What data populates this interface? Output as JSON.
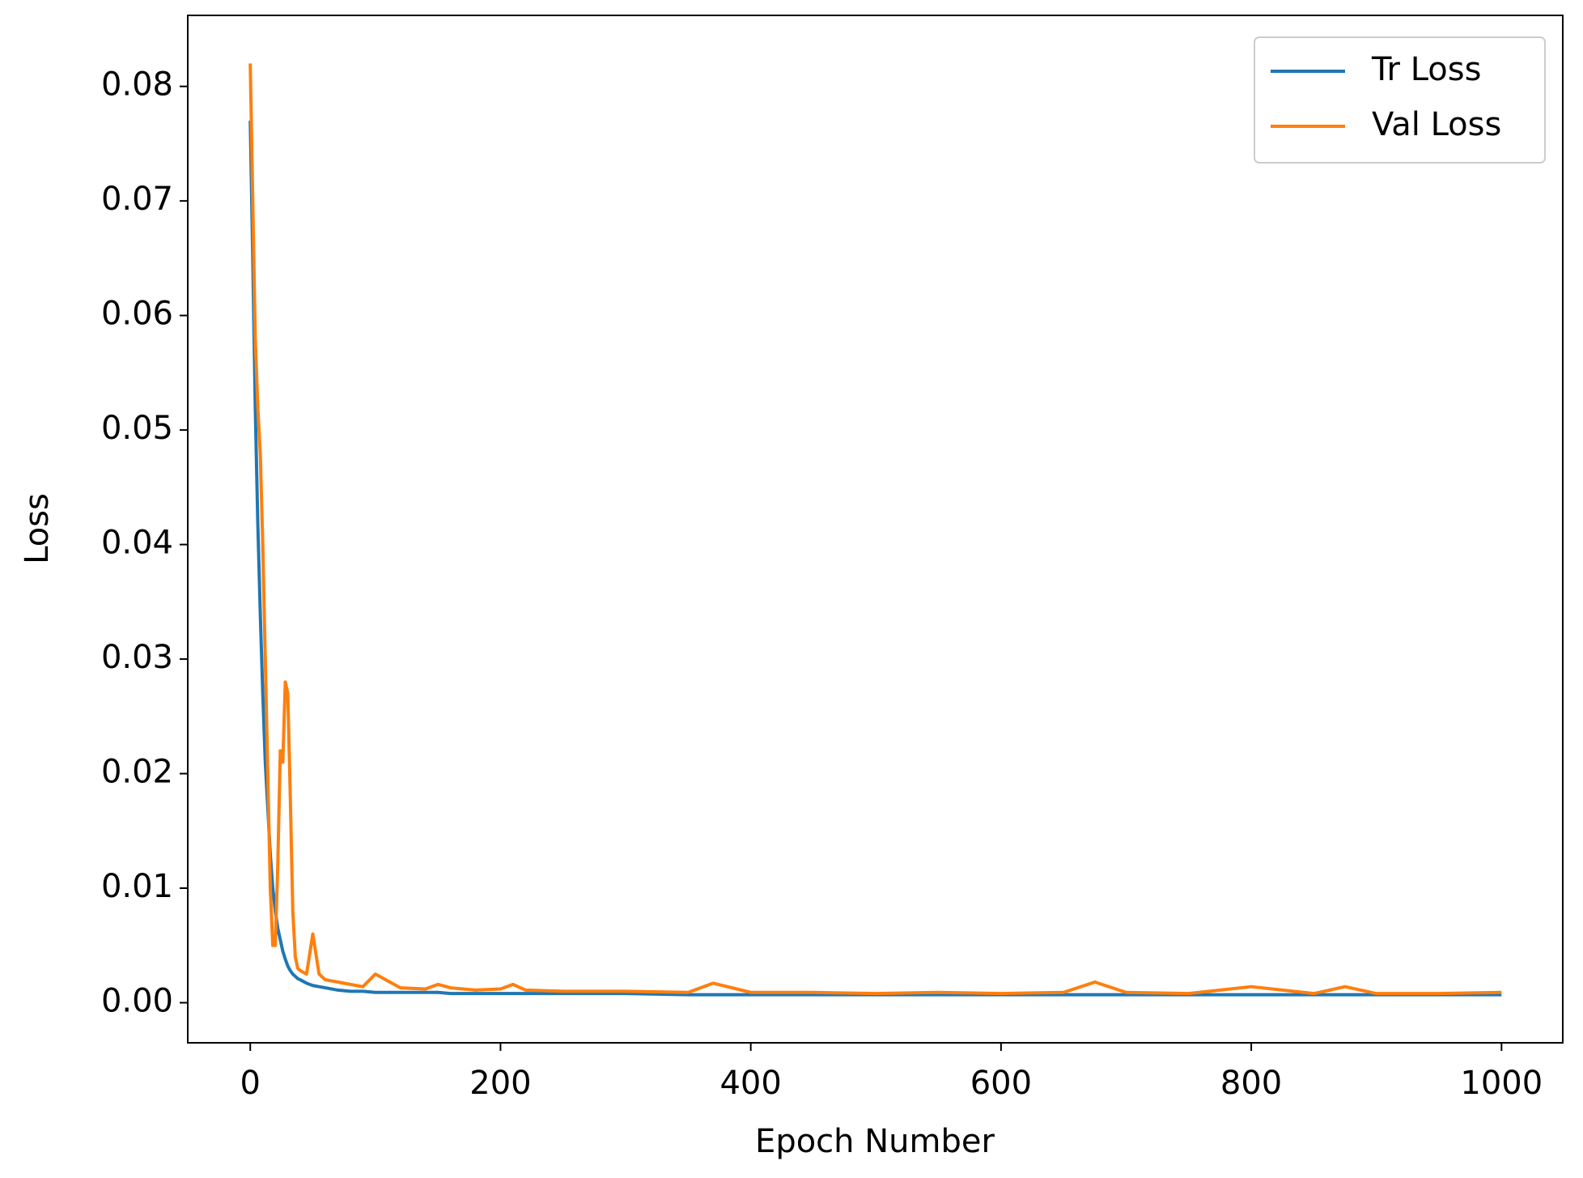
{
  "chart_data": {
    "type": "line",
    "x_label": "Epoch Number",
    "y_label": "Loss",
    "x": [
      0,
      2,
      4,
      6,
      8,
      10,
      12,
      14,
      16,
      18,
      20,
      22,
      24,
      26,
      28,
      30,
      32,
      34,
      36,
      38,
      40,
      45,
      50,
      55,
      60,
      70,
      80,
      90,
      100,
      120,
      140,
      150,
      160,
      180,
      200,
      210,
      220,
      250,
      300,
      350,
      370,
      400,
      450,
      500,
      550,
      600,
      650,
      675,
      700,
      750,
      800,
      850,
      875,
      900,
      950,
      1000
    ],
    "series": [
      {
        "name": "Tr Loss",
        "color": "#1f77b4",
        "values": [
          0.077,
          0.065,
          0.052,
          0.042,
          0.034,
          0.027,
          0.021,
          0.017,
          0.013,
          0.01,
          0.008,
          0.0065,
          0.0055,
          0.0045,
          0.0038,
          0.0032,
          0.0028,
          0.0025,
          0.0023,
          0.0021,
          0.002,
          0.0017,
          0.0015,
          0.0014,
          0.0013,
          0.0011,
          0.001,
          0.001,
          0.0009,
          0.0009,
          0.0009,
          0.0009,
          0.0008,
          0.0008,
          0.0008,
          0.0008,
          0.0008,
          0.0008,
          0.0008,
          0.0007,
          0.0007,
          0.0007,
          0.0007,
          0.0007,
          0.0007,
          0.0007,
          0.0007,
          0.0007,
          0.0007,
          0.0007,
          0.0007,
          0.0007,
          0.0007,
          0.0007,
          0.0007,
          0.0007
        ]
      },
      {
        "name": "Val Loss",
        "color": "#ff7f0e",
        "values": [
          0.082,
          0.07,
          0.058,
          0.052,
          0.048,
          0.04,
          0.03,
          0.02,
          0.01,
          0.005,
          0.005,
          0.012,
          0.022,
          0.021,
          0.028,
          0.027,
          0.018,
          0.008,
          0.004,
          0.003,
          0.0028,
          0.0025,
          0.006,
          0.0025,
          0.002,
          0.0018,
          0.0016,
          0.0014,
          0.0025,
          0.0013,
          0.0012,
          0.0016,
          0.0013,
          0.0011,
          0.0012,
          0.0016,
          0.0011,
          0.001,
          0.001,
          0.0009,
          0.0017,
          0.0009,
          0.0009,
          0.0008,
          0.0009,
          0.0008,
          0.0009,
          0.0018,
          0.0009,
          0.0008,
          0.0014,
          0.0008,
          0.0014,
          0.0008,
          0.0008,
          0.0009
        ]
      }
    ],
    "xlim": [
      -49.95,
      1048.95
    ],
    "xticks": [
      0,
      200,
      400,
      600,
      800,
      1000
    ],
    "ylim": [
      -0.0035,
      0.0862
    ],
    "yticks": [
      {
        "value": 0,
        "label": "0.00"
      },
      0.01,
      0.02,
      0.03,
      0.04,
      0.05,
      0.06,
      0.07,
      0.08
    ],
    "legend": "upper right"
  }
}
